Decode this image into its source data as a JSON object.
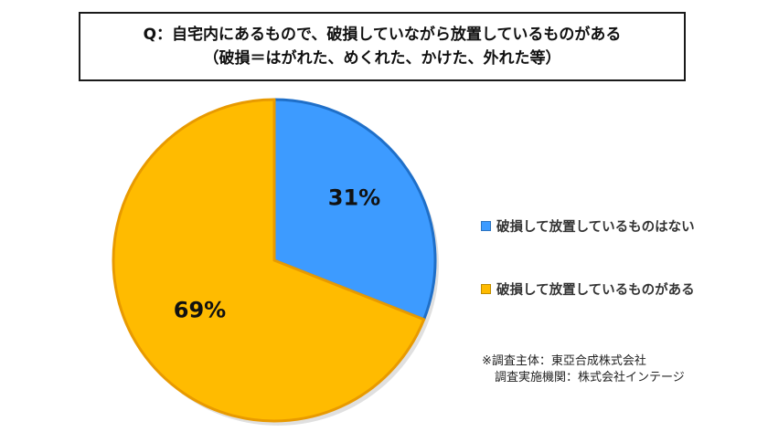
{
  "title": {
    "line1": "Q：自宅内にあるもので、破損していながら放置しているものがある",
    "line2": "（破損＝はがれた、めくれた、かけた、外れた等）"
  },
  "chart_data": {
    "type": "pie",
    "slices": [
      {
        "label": "破損して放置しているものはない",
        "value": 31,
        "value_label": "31%",
        "color": "#3d9bff",
        "edge": "#1f6fc8"
      },
      {
        "label": "破損して放置しているものがある",
        "value": 69,
        "value_label": "69%",
        "color": "#ffbb00",
        "edge": "#e89a00"
      }
    ],
    "start": "12 o'clock, clockwise",
    "legend_position": "right"
  },
  "notes": {
    "line1": "※調査主体：東亞合成株式会社",
    "line2": "調査実施機関：株式会社インテージ"
  }
}
